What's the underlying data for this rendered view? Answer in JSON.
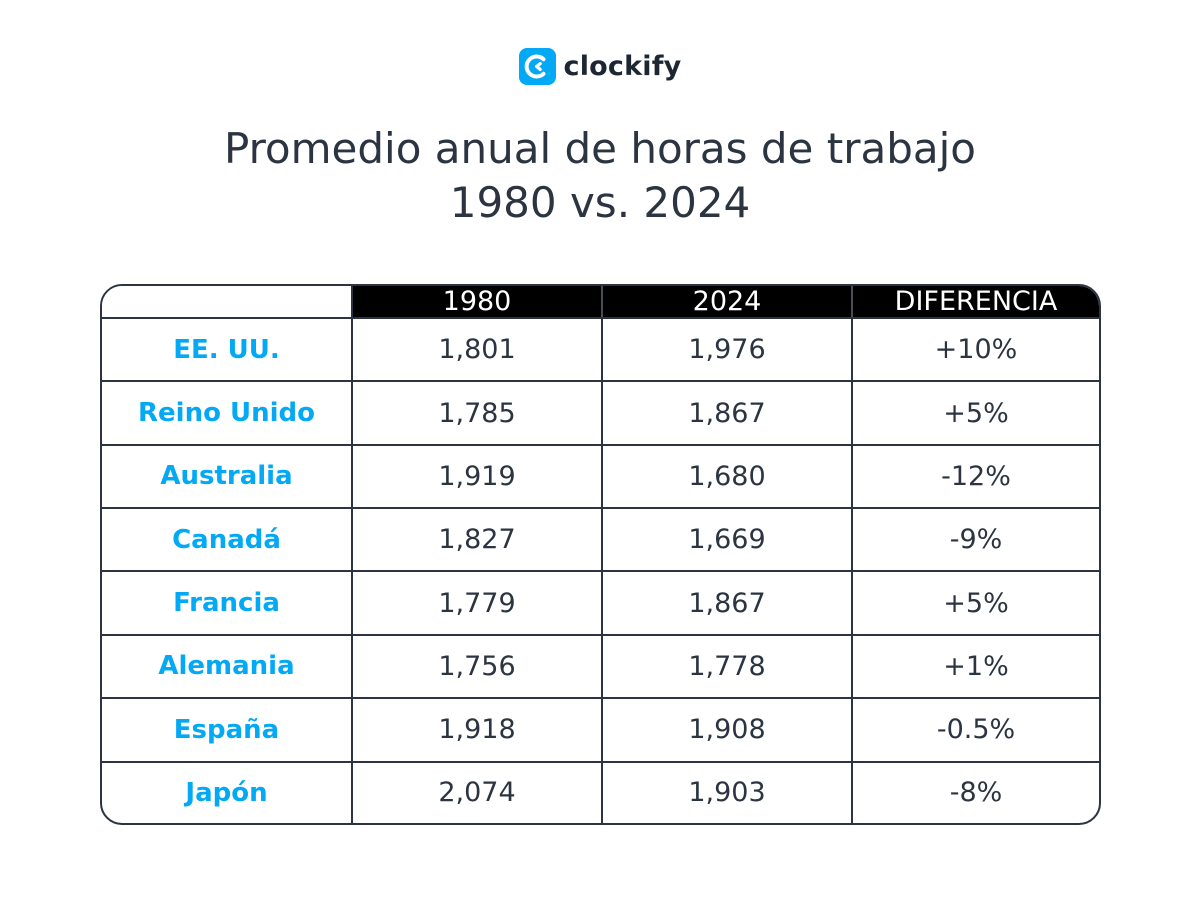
{
  "brand": {
    "name": "clockify",
    "color": "#03a9f4"
  },
  "title": {
    "line1": "Promedio anual de horas de trabajo",
    "line2": "1980 vs. 2024"
  },
  "chart_data": {
    "type": "table",
    "title": "Promedio anual de horas de trabajo 1980 vs. 2024",
    "columns": [
      "",
      "1980",
      "2024",
      "DIFERENCIA"
    ],
    "rows": [
      {
        "country": "EE. UU.",
        "y1980": "1,801",
        "y2024": "1,976",
        "diff": "+10%"
      },
      {
        "country": "Reino Unido",
        "y1980": "1,785",
        "y2024": "1,867",
        "diff": "+5%"
      },
      {
        "country": "Australia",
        "y1980": "1,919",
        "y2024": "1,680",
        "diff": "-12%"
      },
      {
        "country": "Canadá",
        "y1980": "1,827",
        "y2024": "1,669",
        "diff": "-9%"
      },
      {
        "country": "Francia",
        "y1980": "1,779",
        "y2024": "1,867",
        "diff": "+5%"
      },
      {
        "country": "Alemania",
        "y1980": "1,756",
        "y2024": "1,778",
        "diff": "+1%"
      },
      {
        "country": "España",
        "y1980": "1,918",
        "y2024": "1,908",
        "diff": "-0.5%"
      },
      {
        "country": "Japón",
        "y1980": "2,074",
        "y2024": "1,903",
        "diff": "-8%"
      }
    ],
    "colors": {
      "header_bg": "#000000",
      "header_text": "#ffffff",
      "country_text": "#03a9f4",
      "body_text": "#2b3440",
      "border": "#2b3440"
    }
  }
}
